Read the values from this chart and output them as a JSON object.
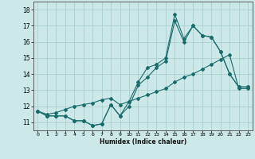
{
  "xlabel": "Humidex (Indice chaleur)",
  "background_color": "#cce8e8",
  "grid_color": "#aacfcf",
  "line_color": "#1a6b6b",
  "xlim": [
    -0.5,
    23.5
  ],
  "ylim": [
    10.5,
    18.5
  ],
  "yticks": [
    11,
    12,
    13,
    14,
    15,
    16,
    17,
    18
  ],
  "xticks": [
    0,
    1,
    2,
    3,
    4,
    5,
    6,
    7,
    8,
    9,
    10,
    11,
    12,
    13,
    14,
    15,
    16,
    17,
    18,
    19,
    20,
    21,
    22,
    23
  ],
  "series1_x": [
    0,
    1,
    2,
    3,
    4,
    5,
    6,
    7,
    8,
    9,
    10,
    11,
    12,
    13,
    14,
    15,
    16,
    17,
    18,
    19,
    20,
    21,
    22,
    23
  ],
  "series1_y": [
    11.7,
    11.4,
    11.4,
    11.4,
    11.1,
    11.1,
    10.8,
    10.9,
    12.1,
    11.4,
    12.0,
    13.3,
    13.8,
    14.4,
    14.8,
    17.3,
    16.0,
    17.0,
    16.4,
    16.3,
    15.4,
    14.0,
    13.2,
    13.2
  ],
  "series2_x": [
    0,
    1,
    2,
    3,
    4,
    5,
    6,
    7,
    8,
    9,
    10,
    11,
    12,
    13,
    14,
    15,
    16,
    17,
    18,
    19,
    20,
    21,
    22,
    23
  ],
  "series2_y": [
    11.7,
    11.4,
    11.4,
    11.4,
    11.1,
    11.1,
    10.8,
    10.9,
    12.1,
    11.4,
    12.3,
    13.5,
    14.4,
    14.6,
    15.0,
    17.7,
    16.2,
    17.0,
    16.4,
    16.3,
    15.4,
    14.0,
    13.2,
    13.2
  ],
  "series3_x": [
    0,
    1,
    2,
    3,
    4,
    5,
    6,
    7,
    8,
    9,
    10,
    11,
    12,
    13,
    14,
    15,
    16,
    17,
    18,
    19,
    20,
    21,
    22,
    23
  ],
  "series3_y": [
    11.7,
    11.5,
    11.6,
    11.8,
    12.0,
    12.1,
    12.2,
    12.4,
    12.5,
    12.1,
    12.3,
    12.5,
    12.7,
    12.9,
    13.1,
    13.5,
    13.8,
    14.0,
    14.3,
    14.6,
    14.9,
    15.2,
    13.1,
    13.1
  ],
  "markersize": 2.0,
  "linewidth": 0.8
}
